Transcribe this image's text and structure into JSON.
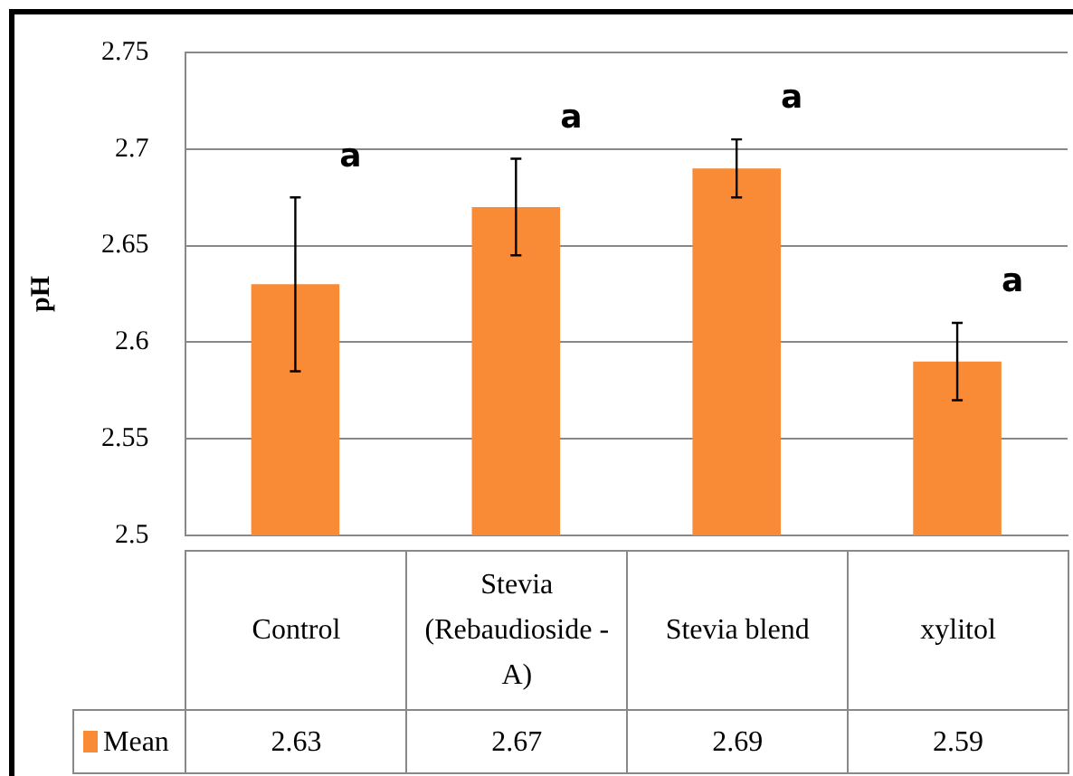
{
  "chart_data": {
    "type": "bar",
    "ylabel": "pH",
    "categories": [
      "Control",
      "Stevia (Rebaudioside - A)",
      "Stevia blend",
      "xylitol"
    ],
    "series": [
      {
        "name": "Mean",
        "color": "#f98a36",
        "values": [
          2.63,
          2.67,
          2.69,
          2.59
        ],
        "errors": [
          [
            2.585,
            2.675
          ],
          [
            2.645,
            2.695
          ],
          [
            2.675,
            2.705
          ],
          [
            2.57,
            2.61
          ]
        ]
      }
    ],
    "ylim": [
      2.5,
      2.75
    ],
    "yticks": [
      2.5,
      2.55,
      2.6,
      2.65,
      2.7,
      2.75
    ],
    "grid": "y",
    "legend": "bottom",
    "data_labels": true,
    "annotations": [
      "a",
      "a",
      "a",
      "a"
    ]
  }
}
